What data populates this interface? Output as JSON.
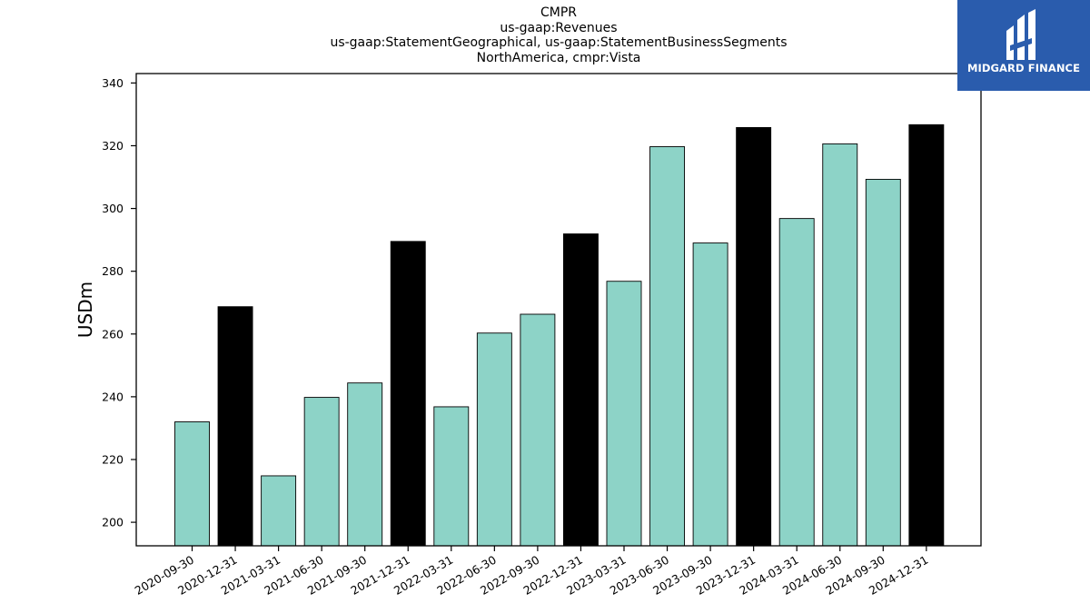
{
  "title_lines": [
    "CMPR",
    "us-gaap:Revenues",
    "us-gaap:StatementGeographical, us-gaap:StatementBusinessSegments",
    "NorthAmerica, cmpr:Vista"
  ],
  "logo": {
    "text": "MIDGARD FINANCE",
    "background": "#2a5cad"
  },
  "chart_data": {
    "type": "bar",
    "ylabel": "USDm",
    "xlabel": "",
    "ylim": [
      192.5,
      343
    ],
    "yticks": [
      200,
      220,
      240,
      260,
      280,
      300,
      320,
      340
    ],
    "grid": false,
    "categories": [
      "2020-09-30",
      "2020-12-31",
      "2021-03-31",
      "2021-06-30",
      "2021-09-30",
      "2021-12-31",
      "2022-03-31",
      "2022-06-30",
      "2022-09-30",
      "2022-12-31",
      "2023-03-31",
      "2023-06-30",
      "2023-09-30",
      "2023-12-31",
      "2024-03-31",
      "2024-06-30",
      "2024-09-30",
      "2024-12-31"
    ],
    "values": [
      232,
      268.7,
      214.8,
      239.8,
      244.4,
      289.5,
      236.8,
      260.3,
      266.3,
      291.9,
      276.8,
      319.7,
      289.0,
      325.8,
      296.8,
      320.6,
      309.3,
      326.7
    ],
    "colors": {
      "quarter": "#8dd3c7",
      "year_end": "#000000",
      "edge": "#000000"
    }
  }
}
